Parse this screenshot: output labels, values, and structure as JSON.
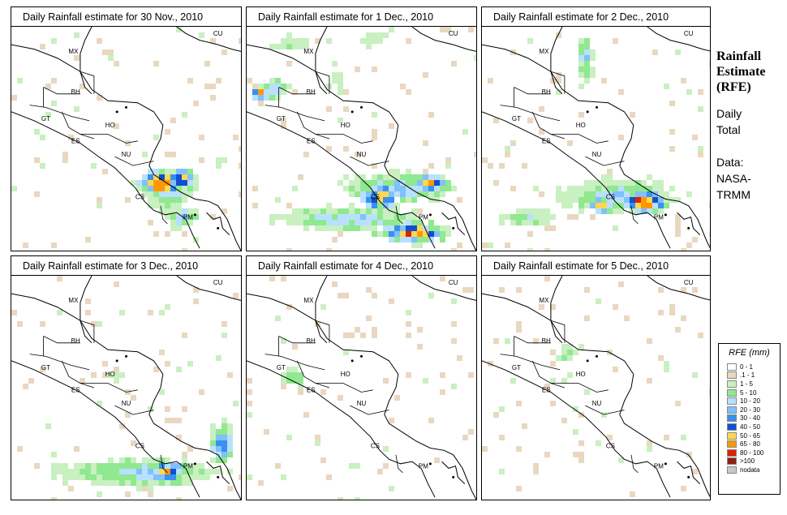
{
  "panels": [
    {
      "title": "Daily Rainfall estimate for  30 Nov., 2010"
    },
    {
      "title": "Daily Rainfall estimate for  1 Dec., 2010"
    },
    {
      "title": "Daily Rainfall estimate for  2 Dec., 2010"
    },
    {
      "title": "Daily Rainfall estimate for  3 Dec., 2010"
    },
    {
      "title": "Daily Rainfall estimate for  4 Dec., 2010"
    },
    {
      "title": "Daily Rainfall estimate for  5 Dec., 2010"
    }
  ],
  "region_labels": [
    "MX",
    "CU",
    "BH",
    "GT",
    "HO",
    "ES",
    "NU",
    "CS",
    "PM"
  ],
  "side": {
    "title_line1": "Rainfall",
    "title_line2": "Estimate",
    "title_line3": "(RFE)",
    "line1": "Daily",
    "line2": "Total",
    "line3": "Data:",
    "line4": "NASA-",
    "line5": "TRMM"
  },
  "legend": {
    "title": "RFE (mm)",
    "items": [
      {
        "label": "0 - 1",
        "color": "#ffffff"
      },
      {
        "label": ".1 - 1",
        "color": "#e8d8c0"
      },
      {
        "label": "1 - 5",
        "color": "#c8f0c0"
      },
      {
        "label": "5 - 10",
        "color": "#90e890"
      },
      {
        "label": "10 - 20",
        "color": "#b8e0ff"
      },
      {
        "label": "20 - 30",
        "color": "#80c0ff"
      },
      {
        "label": "30 - 40",
        "color": "#3890f0"
      },
      {
        "label": "40 - 50",
        "color": "#1050d0"
      },
      {
        "label": "50 - 65",
        "color": "#ffd850"
      },
      {
        "label": "65 - 80",
        "color": "#ff9800"
      },
      {
        "label": "80 - 100",
        "color": "#e02000"
      },
      {
        "label": ">100",
        "color": "#902010"
      },
      {
        "label": "nodata",
        "color": "#c8c8c8"
      }
    ]
  }
}
